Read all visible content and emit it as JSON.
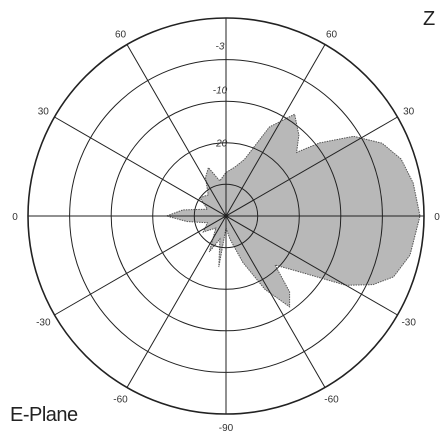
{
  "page": {
    "title": "E-Plane",
    "corner_text": "Z"
  },
  "chart_data": {
    "type": "polar",
    "title": "E-Plane",
    "angle_ticks": [
      {
        "label": "0",
        "deg": 0
      },
      {
        "label": "30",
        "deg": 30
      },
      {
        "label": "60",
        "deg": 60
      },
      {
        "label": "60",
        "deg": 120
      },
      {
        "label": "30",
        "deg": 150
      },
      {
        "label": "0",
        "deg": 180
      },
      {
        "label": "-30",
        "deg": 210
      },
      {
        "label": "-60",
        "deg": 240
      },
      {
        "label": "-90",
        "deg": 270
      },
      {
        "label": "-60",
        "deg": 300
      },
      {
        "label": "-30",
        "deg": 330
      }
    ],
    "radial_ticks": [
      "-3",
      "-10",
      "-20"
    ],
    "fill_color": "#b8b8b8",
    "series": [
      {
        "pattern": [
          {
            "deg": -90,
            "r": 0.06
          },
          {
            "deg": -80,
            "r": 0.12
          },
          {
            "deg": -70,
            "r": 0.25
          },
          {
            "deg": -62,
            "r": 0.42
          },
          {
            "deg": -55,
            "r": 0.56
          },
          {
            "deg": -50,
            "r": 0.5
          },
          {
            "deg": -45,
            "r": 0.35
          },
          {
            "deg": -38,
            "r": 0.45
          },
          {
            "deg": -30,
            "r": 0.7
          },
          {
            "deg": -25,
            "r": 0.82
          },
          {
            "deg": -20,
            "r": 0.9
          },
          {
            "deg": -12,
            "r": 0.95
          },
          {
            "deg": 0,
            "r": 0.98
          },
          {
            "deg": 10,
            "r": 0.96
          },
          {
            "deg": 18,
            "r": 0.93
          },
          {
            "deg": 25,
            "r": 0.87
          },
          {
            "deg": 32,
            "r": 0.76
          },
          {
            "deg": 38,
            "r": 0.6
          },
          {
            "deg": 42,
            "r": 0.48
          },
          {
            "deg": 48,
            "r": 0.55
          },
          {
            "deg": 56,
            "r": 0.62
          },
          {
            "deg": 64,
            "r": 0.5
          },
          {
            "deg": 72,
            "r": 0.3
          },
          {
            "deg": 80,
            "r": 0.25
          },
          {
            "deg": 90,
            "r": 0.22
          },
          {
            "deg": 100,
            "r": 0.18
          },
          {
            "deg": 110,
            "r": 0.26
          },
          {
            "deg": 118,
            "r": 0.22
          },
          {
            "deg": 130,
            "r": 0.14
          },
          {
            "deg": 145,
            "r": 0.16
          },
          {
            "deg": 160,
            "r": 0.1
          },
          {
            "deg": 172,
            "r": 0.22
          },
          {
            "deg": 180,
            "r": 0.3
          },
          {
            "deg": 188,
            "r": 0.2
          },
          {
            "deg": 200,
            "r": 0.1
          },
          {
            "deg": 215,
            "r": 0.14
          },
          {
            "deg": 230,
            "r": 0.08
          },
          {
            "deg": 245,
            "r": 0.2
          },
          {
            "deg": 255,
            "r": 0.12
          },
          {
            "deg": 262,
            "r": 0.26
          },
          {
            "deg": 270,
            "r": 0.06
          }
        ]
      }
    ]
  }
}
